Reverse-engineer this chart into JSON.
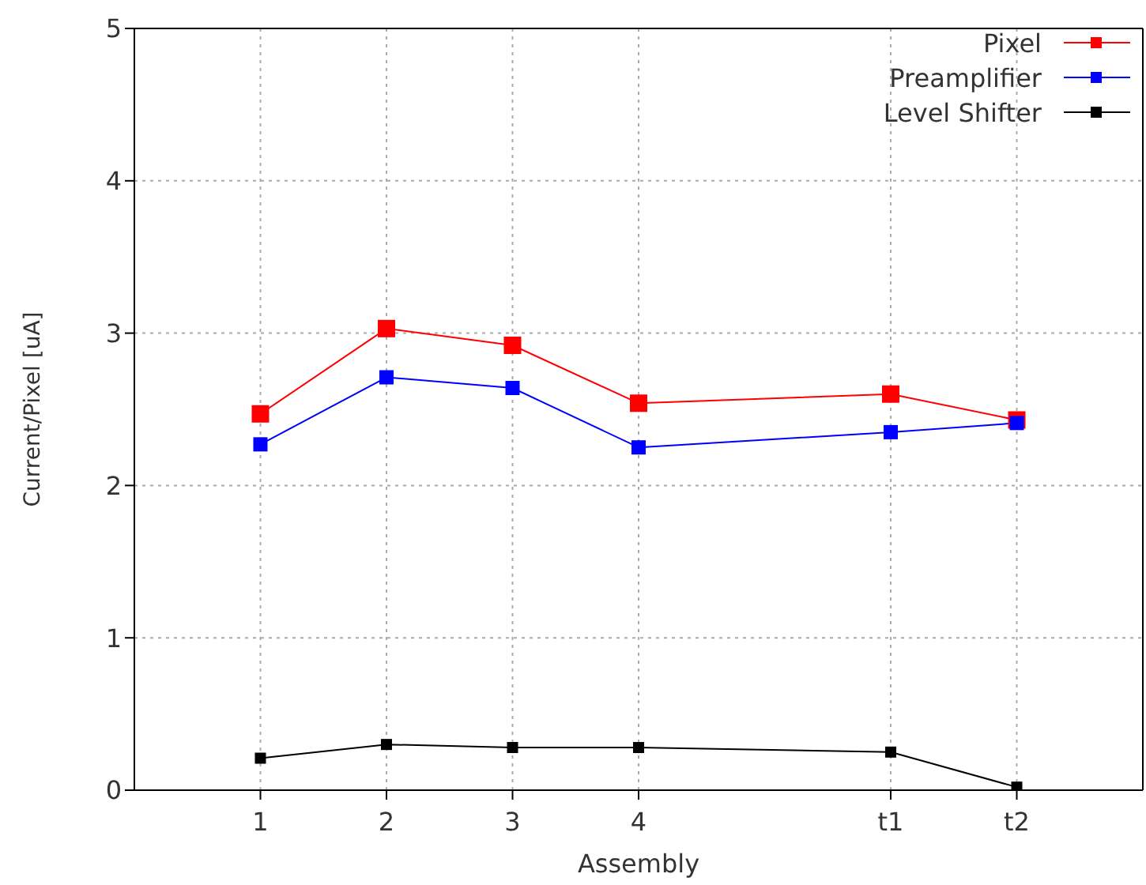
{
  "chart_data": {
    "type": "line",
    "xlabel": "Assembly",
    "ylabel": "Current/Pixel [uA]",
    "x": [
      1,
      2,
      3,
      4,
      6,
      7
    ],
    "xlim": [
      0,
      8
    ],
    "xticks": [
      1,
      2,
      3,
      4,
      {
        "value": 6,
        "label": "t1"
      },
      {
        "value": 7,
        "label": "t2"
      }
    ],
    "ylim": [
      0,
      5
    ],
    "yticks": [
      0,
      1,
      2,
      3,
      4,
      5
    ],
    "series": [
      {
        "name": "Pixel",
        "color": "#ff0000",
        "values": [
          2.47,
          3.03,
          2.92,
          2.54,
          2.6,
          2.43
        ]
      },
      {
        "name": "Preamplifier",
        "color": "#0000ff",
        "values": [
          2.27,
          2.71,
          2.64,
          2.25,
          2.35,
          2.41
        ]
      },
      {
        "name": "Level Shifter",
        "color": "#000000",
        "values": [
          0.21,
          0.3,
          0.28,
          0.28,
          0.25,
          0.02
        ]
      }
    ],
    "grid": true,
    "legend": "top right",
    "marker": "square",
    "line_style": "solid"
  }
}
